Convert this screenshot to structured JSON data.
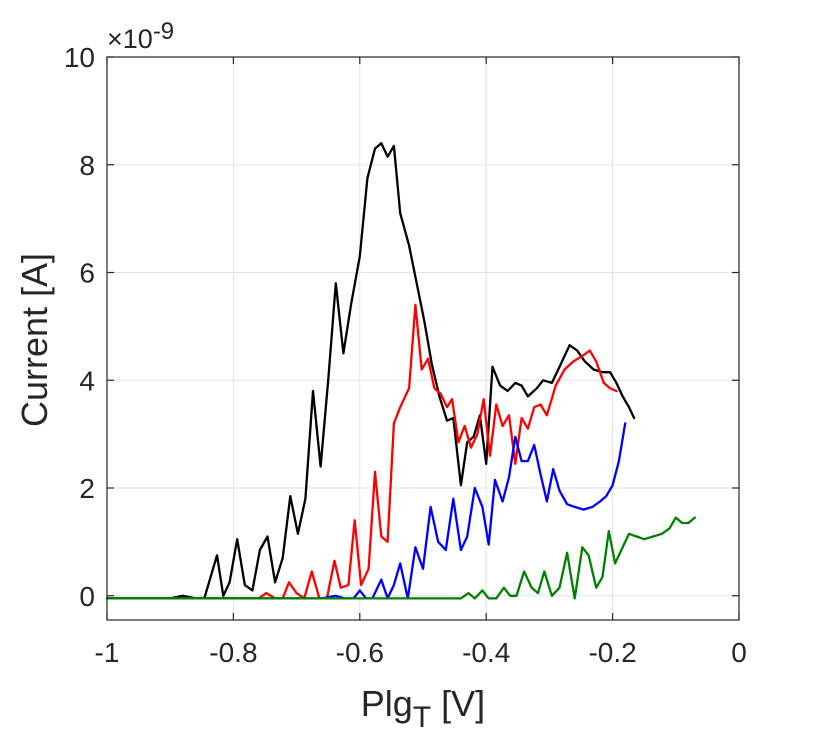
{
  "chart_data": {
    "type": "line",
    "xlabel_main": "Plg",
    "xlabel_sub": "T",
    "xlabel_unit": " [V]",
    "ylabel": "Current [A]",
    "y_exponent_prefix": "×10",
    "y_exponent_power": "-9",
    "xlim": [
      -1,
      0
    ],
    "ylim": [
      -0.45,
      10
    ],
    "x_ticks": [
      -1,
      -0.8,
      -0.6,
      -0.4,
      -0.2,
      0
    ],
    "x_tick_labels": [
      "-1",
      "-0.8",
      "-0.6",
      "-0.4",
      "-0.2",
      "0"
    ],
    "y_ticks": [
      0,
      2,
      4,
      6,
      8,
      10
    ],
    "y_tick_labels": [
      "0",
      "2",
      "4",
      "6",
      "8",
      "10"
    ],
    "grid": true,
    "legend": "none",
    "series": [
      {
        "color": "#000000",
        "points": [
          [
            -1,
            -0.05
          ],
          [
            -0.9,
            -0.05
          ],
          [
            -0.88,
            0.0
          ],
          [
            -0.86,
            -0.05
          ],
          [
            -0.846,
            -0.05
          ],
          [
            -0.826,
            0.75
          ],
          [
            -0.816,
            0.0
          ],
          [
            -0.806,
            0.25
          ],
          [
            -0.794,
            1.05
          ],
          [
            -0.782,
            0.2
          ],
          [
            -0.77,
            0.1
          ],
          [
            -0.758,
            0.85
          ],
          [
            -0.746,
            1.1
          ],
          [
            -0.734,
            0.25
          ],
          [
            -0.722,
            0.7
          ],
          [
            -0.71,
            1.85
          ],
          [
            -0.698,
            1.15
          ],
          [
            -0.686,
            1.8
          ],
          [
            -0.674,
            3.8
          ],
          [
            -0.662,
            2.4
          ],
          [
            -0.65,
            4.0
          ],
          [
            -0.638,
            5.8
          ],
          [
            -0.626,
            4.5
          ],
          [
            -0.614,
            5.4
          ],
          [
            -0.6,
            6.3
          ],
          [
            -0.588,
            7.75
          ],
          [
            -0.576,
            8.3
          ],
          [
            -0.566,
            8.4
          ],
          [
            -0.556,
            8.15
          ],
          [
            -0.546,
            8.35
          ],
          [
            -0.536,
            7.1
          ],
          [
            -0.522,
            6.5
          ],
          [
            -0.51,
            5.8
          ],
          [
            -0.498,
            5.1
          ],
          [
            -0.486,
            4.3
          ],
          [
            -0.474,
            3.7
          ],
          [
            -0.462,
            3.25
          ],
          [
            -0.452,
            3.3
          ],
          [
            -0.44,
            2.05
          ],
          [
            -0.43,
            2.85
          ],
          [
            -0.42,
            2.95
          ],
          [
            -0.41,
            3.35
          ],
          [
            -0.4,
            2.45
          ],
          [
            -0.39,
            4.25
          ],
          [
            -0.378,
            3.9
          ],
          [
            -0.366,
            3.8
          ],
          [
            -0.354,
            3.95
          ],
          [
            -0.344,
            3.9
          ],
          [
            -0.334,
            3.7
          ],
          [
            -0.32,
            3.85
          ],
          [
            -0.31,
            4.0
          ],
          [
            -0.296,
            3.95
          ],
          [
            -0.282,
            4.3
          ],
          [
            -0.268,
            4.65
          ],
          [
            -0.256,
            4.55
          ],
          [
            -0.244,
            4.35
          ],
          [
            -0.23,
            4.2
          ],
          [
            -0.216,
            4.15
          ],
          [
            -0.204,
            4.15
          ],
          [
            -0.194,
            3.95
          ],
          [
            -0.184,
            3.7
          ],
          [
            -0.174,
            3.5
          ],
          [
            -0.166,
            3.3
          ]
        ]
      },
      {
        "color": "#ff0000",
        "points": [
          [
            -1,
            -0.05
          ],
          [
            -0.76,
            -0.05
          ],
          [
            -0.748,
            0.05
          ],
          [
            -0.734,
            -0.05
          ],
          [
            -0.722,
            -0.05
          ],
          [
            -0.712,
            0.25
          ],
          [
            -0.7,
            0.05
          ],
          [
            -0.688,
            -0.05
          ],
          [
            -0.676,
            0.45
          ],
          [
            -0.664,
            -0.05
          ],
          [
            -0.652,
            -0.05
          ],
          [
            -0.64,
            0.65
          ],
          [
            -0.63,
            0.15
          ],
          [
            -0.618,
            0.2
          ],
          [
            -0.608,
            1.4
          ],
          [
            -0.598,
            0.2
          ],
          [
            -0.586,
            0.5
          ],
          [
            -0.576,
            2.3
          ],
          [
            -0.566,
            1.1
          ],
          [
            -0.556,
            1.0
          ],
          [
            -0.546,
            3.2
          ],
          [
            -0.536,
            3.5
          ],
          [
            -0.522,
            3.85
          ],
          [
            -0.512,
            5.4
          ],
          [
            -0.502,
            4.2
          ],
          [
            -0.492,
            4.4
          ],
          [
            -0.482,
            3.85
          ],
          [
            -0.472,
            3.75
          ],
          [
            -0.462,
            3.5
          ],
          [
            -0.454,
            3.65
          ],
          [
            -0.444,
            2.85
          ],
          [
            -0.434,
            3.15
          ],
          [
            -0.424,
            2.75
          ],
          [
            -0.414,
            3.0
          ],
          [
            -0.404,
            3.65
          ],
          [
            -0.394,
            2.6
          ],
          [
            -0.384,
            3.55
          ],
          [
            -0.374,
            3.15
          ],
          [
            -0.364,
            3.35
          ],
          [
            -0.354,
            2.45
          ],
          [
            -0.344,
            3.3
          ],
          [
            -0.334,
            3.1
          ],
          [
            -0.324,
            3.5
          ],
          [
            -0.314,
            3.55
          ],
          [
            -0.304,
            3.35
          ],
          [
            -0.29,
            3.9
          ],
          [
            -0.276,
            4.2
          ],
          [
            -0.262,
            4.35
          ],
          [
            -0.248,
            4.45
          ],
          [
            -0.236,
            4.55
          ],
          [
            -0.226,
            4.35
          ],
          [
            -0.214,
            3.95
          ],
          [
            -0.204,
            3.85
          ],
          [
            -0.194,
            3.8
          ]
        ]
      },
      {
        "color": "#0000ff",
        "points": [
          [
            -1,
            -0.05
          ],
          [
            -0.66,
            -0.05
          ],
          [
            -0.638,
            0.0
          ],
          [
            -0.624,
            -0.05
          ],
          [
            -0.61,
            -0.05
          ],
          [
            -0.6,
            0.1
          ],
          [
            -0.59,
            -0.05
          ],
          [
            -0.58,
            -0.05
          ],
          [
            -0.566,
            0.3
          ],
          [
            -0.556,
            -0.05
          ],
          [
            -0.546,
            0.2
          ],
          [
            -0.536,
            0.6
          ],
          [
            -0.524,
            -0.05
          ],
          [
            -0.512,
            0.9
          ],
          [
            -0.5,
            0.5
          ],
          [
            -0.488,
            1.65
          ],
          [
            -0.476,
            1.0
          ],
          [
            -0.464,
            0.85
          ],
          [
            -0.452,
            1.8
          ],
          [
            -0.44,
            0.85
          ],
          [
            -0.43,
            1.1
          ],
          [
            -0.418,
            2.0
          ],
          [
            -0.406,
            1.65
          ],
          [
            -0.396,
            0.95
          ],
          [
            -0.386,
            2.15
          ],
          [
            -0.374,
            1.75
          ],
          [
            -0.364,
            2.2
          ],
          [
            -0.354,
            2.95
          ],
          [
            -0.344,
            2.5
          ],
          [
            -0.334,
            2.5
          ],
          [
            -0.324,
            2.8
          ],
          [
            -0.314,
            2.25
          ],
          [
            -0.304,
            1.75
          ],
          [
            -0.294,
            2.35
          ],
          [
            -0.284,
            1.95
          ],
          [
            -0.272,
            1.7
          ],
          [
            -0.26,
            1.65
          ],
          [
            -0.246,
            1.6
          ],
          [
            -0.232,
            1.65
          ],
          [
            -0.22,
            1.75
          ],
          [
            -0.21,
            1.85
          ],
          [
            -0.2,
            2.05
          ],
          [
            -0.19,
            2.5
          ],
          [
            -0.18,
            3.2
          ]
        ]
      },
      {
        "color": "#008000",
        "points": [
          [
            -1,
            -0.05
          ],
          [
            -0.44,
            -0.05
          ],
          [
            -0.428,
            0.05
          ],
          [
            -0.418,
            -0.05
          ],
          [
            -0.406,
            0.1
          ],
          [
            -0.396,
            -0.05
          ],
          [
            -0.384,
            -0.05
          ],
          [
            -0.372,
            0.15
          ],
          [
            -0.362,
            0.0
          ],
          [
            -0.352,
            0.0
          ],
          [
            -0.34,
            0.45
          ],
          [
            -0.328,
            0.15
          ],
          [
            -0.318,
            0.05
          ],
          [
            -0.308,
            0.45
          ],
          [
            -0.296,
            0.0
          ],
          [
            -0.284,
            0.15
          ],
          [
            -0.272,
            0.8
          ],
          [
            -0.26,
            -0.05
          ],
          [
            -0.248,
            0.9
          ],
          [
            -0.238,
            0.75
          ],
          [
            -0.226,
            0.15
          ],
          [
            -0.216,
            0.35
          ],
          [
            -0.206,
            1.2
          ],
          [
            -0.196,
            0.6
          ],
          [
            -0.186,
            0.85
          ],
          [
            -0.174,
            1.15
          ],
          [
            -0.162,
            1.1
          ],
          [
            -0.15,
            1.05
          ],
          [
            -0.136,
            1.1
          ],
          [
            -0.122,
            1.15
          ],
          [
            -0.11,
            1.25
          ],
          [
            -0.1,
            1.45
          ],
          [
            -0.09,
            1.35
          ],
          [
            -0.08,
            1.35
          ],
          [
            -0.07,
            1.45
          ]
        ]
      }
    ]
  }
}
